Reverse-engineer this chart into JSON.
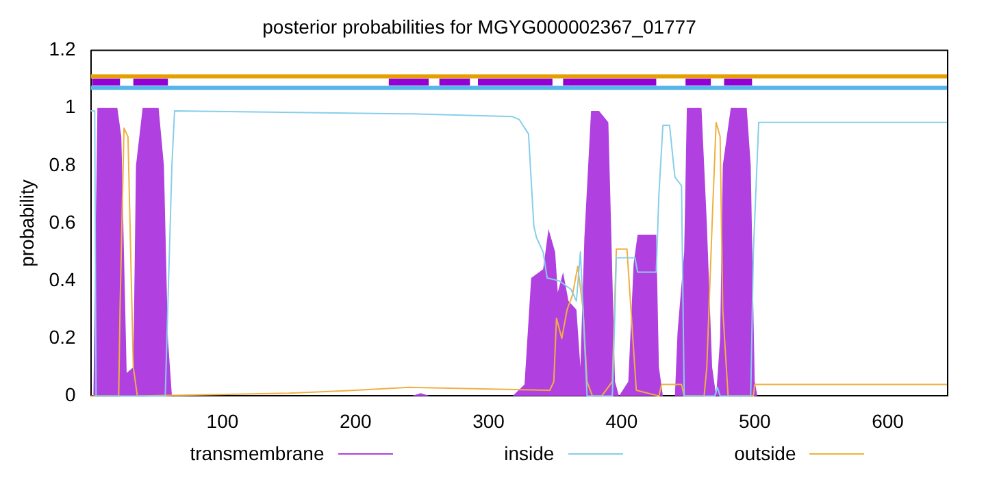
{
  "chart_data": {
    "type": "line",
    "title": "posterior probabilities for MGYG000002367_01777",
    "ylabel": "probability",
    "xlim": [
      1,
      645
    ],
    "ylim": [
      0,
      1.2
    ],
    "xticks": [
      100,
      200,
      300,
      400,
      500,
      600
    ],
    "yticks": [
      0,
      0.2,
      0.4,
      0.6,
      0.8,
      1,
      1.2
    ],
    "grid": false,
    "legend": "bottom",
    "marker": "none",
    "line_style": "solid",
    "series": [
      {
        "name": "transmembrane",
        "type": "area",
        "color": "#b040e0",
        "x": [
          1,
          3,
          6,
          21,
          24,
          28,
          33,
          35,
          40,
          52,
          56,
          59,
          62,
          150,
          242,
          249,
          256,
          318,
          327,
          332,
          341,
          345,
          350,
          352,
          356,
          360,
          366,
          369,
          372,
          377,
          383,
          390,
          392,
          395,
          398,
          405,
          409,
          412,
          426,
          428,
          431,
          440,
          442,
          447,
          449,
          460,
          464,
          468,
          471,
          474,
          476,
          482,
          494,
          497,
          500,
          502,
          645
        ],
        "values": [
          0,
          0,
          1,
          1,
          0.9,
          0.08,
          0.1,
          0.8,
          1,
          1,
          0.8,
          0.2,
          0,
          0,
          0,
          0.01,
          0,
          0,
          0.04,
          0.41,
          0.44,
          0.58,
          0.5,
          0.36,
          0.43,
          0.33,
          0.3,
          0.1,
          0.55,
          0.99,
          0.99,
          0.95,
          0.6,
          0.05,
          0,
          0.05,
          0.46,
          0.56,
          0.56,
          0.1,
          0,
          0,
          0.22,
          0.5,
          1,
          1,
          0.6,
          0.1,
          0,
          0.2,
          0.8,
          1,
          1,
          0.8,
          0.05,
          0,
          0
        ]
      },
      {
        "name": "inside",
        "color": "#87ceeb",
        "x": [
          1,
          4,
          5,
          57,
          62,
          64,
          235,
          242,
          318,
          323,
          330,
          334,
          336,
          341,
          344,
          353,
          362,
          366,
          369,
          374,
          393,
          395,
          396,
          410,
          412,
          426,
          428,
          431,
          436,
          440,
          445,
          447,
          470,
          472,
          474,
          497,
          499,
          503,
          645
        ],
        "values": [
          0.99,
          0.99,
          0,
          0,
          0.8,
          0.99,
          0.98,
          0.98,
          0.97,
          0.96,
          0.91,
          0.59,
          0.55,
          0.5,
          0.41,
          0.4,
          0.37,
          0.33,
          0.5,
          0,
          0,
          0.3,
          0.48,
          0.48,
          0.43,
          0.43,
          0.7,
          0.94,
          0.94,
          0.76,
          0.73,
          0,
          0,
          0.03,
          0,
          0,
          0.5,
          0.95,
          0.95
        ]
      },
      {
        "name": "outside",
        "color": "#f0b040",
        "x": [
          1,
          22,
          23,
          26,
          29,
          33,
          36,
          150,
          200,
          240,
          346,
          349,
          351,
          355,
          359,
          363,
          367,
          371,
          374,
          378,
          385,
          393,
          396,
          404,
          407,
          411,
          428,
          430,
          445,
          447,
          462,
          464,
          468,
          471,
          474,
          476,
          480,
          499,
          500,
          645
        ],
        "values": [
          0,
          0,
          0.3,
          0.93,
          0.9,
          0.1,
          0,
          0.01,
          0.02,
          0.03,
          0.02,
          0.05,
          0.27,
          0.2,
          0.3,
          0.35,
          0.45,
          0.3,
          0.05,
          0,
          0,
          0.05,
          0.51,
          0.51,
          0.3,
          0.02,
          0,
          0.04,
          0.04,
          0,
          0,
          0.1,
          0.6,
          0.95,
          0.9,
          0.3,
          0,
          0,
          0.04,
          0.04
        ]
      },
      {
        "color": "#e69f00",
        "x": [
          1,
          645
        ],
        "values": [
          1.11,
          1.11
        ]
      },
      {
        "color": "#56b4e9",
        "x": [
          1,
          645
        ],
        "values": [
          1.07,
          1.07
        ]
      },
      {
        "color": "#9400d3",
        "x": [
          2,
          23,
          28,
          33,
          59,
          140,
          225,
          255,
          259,
          263,
          286,
          289,
          292,
          348,
          352,
          356,
          426,
          437,
          448,
          467,
          472,
          477,
          498
        ],
        "values": [
          1.09,
          1.09,
          null,
          1.09,
          1.09,
          null,
          1.09,
          1.09,
          null,
          1.09,
          1.09,
          null,
          1.09,
          1.09,
          null,
          1.09,
          1.09,
          null,
          1.09,
          1.09,
          null,
          1.09,
          1.09
        ]
      }
    ]
  }
}
